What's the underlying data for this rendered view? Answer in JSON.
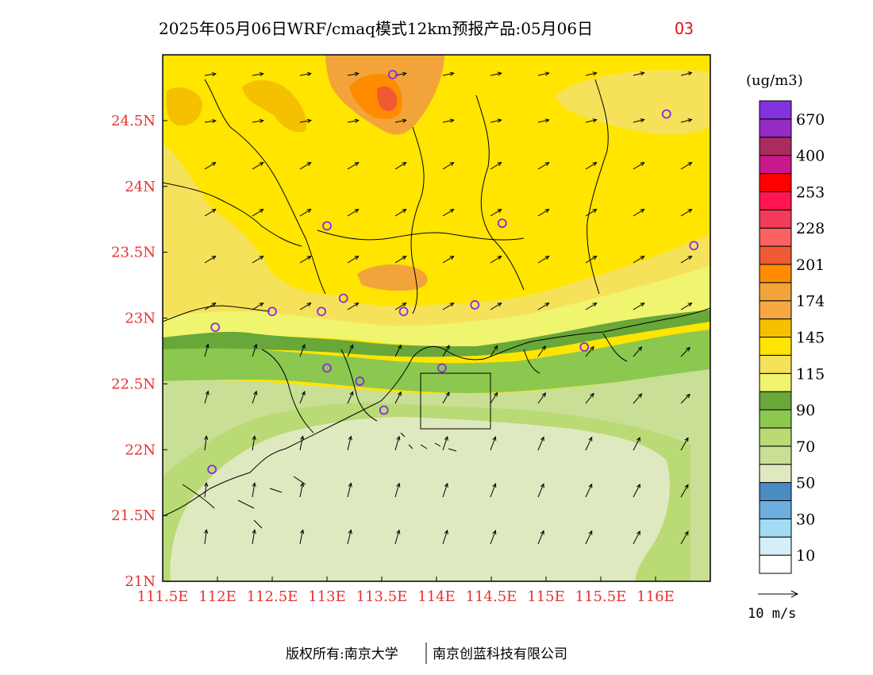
{
  "header": {
    "title": "2025年05月06日WRF/cmaq模式12km预报产品:05月06日",
    "variable": "O3"
  },
  "map": {
    "lon_range": [
      111.5,
      116.5
    ],
    "lat_range": [
      21.0,
      25.0
    ],
    "lon_labels": [
      "111.5E",
      "112E",
      "112.5E",
      "113E",
      "113.5E",
      "114E",
      "114.5E",
      "115E",
      "115.5E",
      "116E"
    ],
    "lat_labels": [
      "21N",
      "21.5N",
      "22N",
      "22.5N",
      "23N",
      "23.5N",
      "24N",
      "24.5N"
    ],
    "stations": [
      {
        "lon": 113.6,
        "lat": 24.85
      },
      {
        "lon": 116.1,
        "lat": 24.55
      },
      {
        "lon": 113.0,
        "lat": 23.7
      },
      {
        "lon": 114.6,
        "lat": 23.72
      },
      {
        "lon": 116.35,
        "lat": 23.55
      },
      {
        "lon": 112.5,
        "lat": 23.05
      },
      {
        "lon": 112.95,
        "lat": 23.05
      },
      {
        "lon": 113.15,
        "lat": 23.15
      },
      {
        "lon": 113.7,
        "lat": 23.05
      },
      {
        "lon": 114.35,
        "lat": 23.1
      },
      {
        "lon": 111.98,
        "lat": 22.93
      },
      {
        "lon": 115.35,
        "lat": 22.78
      },
      {
        "lon": 113.0,
        "lat": 22.62
      },
      {
        "lon": 113.3,
        "lat": 22.52
      },
      {
        "lon": 114.05,
        "lat": 22.62
      },
      {
        "lon": 113.52,
        "lat": 22.3
      },
      {
        "lon": 111.95,
        "lat": 21.85
      }
    ],
    "colors": {
      "station": "#8a2be2",
      "axis_label": "#e63030"
    }
  },
  "colorbar": {
    "unit": "(ug/m3)",
    "colors": [
      "#ffffff",
      "#d6eef8",
      "#a2dcf4",
      "#6caedf",
      "#4a8bc2",
      "#dfe9c0",
      "#c9df95",
      "#b9da75",
      "#8cc850",
      "#68a73a",
      "#f0f570",
      "#f5e25a",
      "#ffe500",
      "#f5c000",
      "#f8a842",
      "#f2a43a",
      "#ff8c00",
      "#ef5a32",
      "#fa6262",
      "#f23c5a",
      "#ff1650",
      "#ff0000",
      "#c8198c",
      "#aa2c5e",
      "#962bc3",
      "#8232dc"
    ],
    "labels": [
      "10",
      "30",
      "50",
      "70",
      "90",
      "115",
      "145",
      "174",
      "201",
      "228",
      "253",
      "400",
      "670"
    ]
  },
  "wind_reference": {
    "label": "10 m/s"
  },
  "footer": {
    "copyright": "版权所有:南京大学",
    "company": "南京创蓝科技有限公司"
  }
}
